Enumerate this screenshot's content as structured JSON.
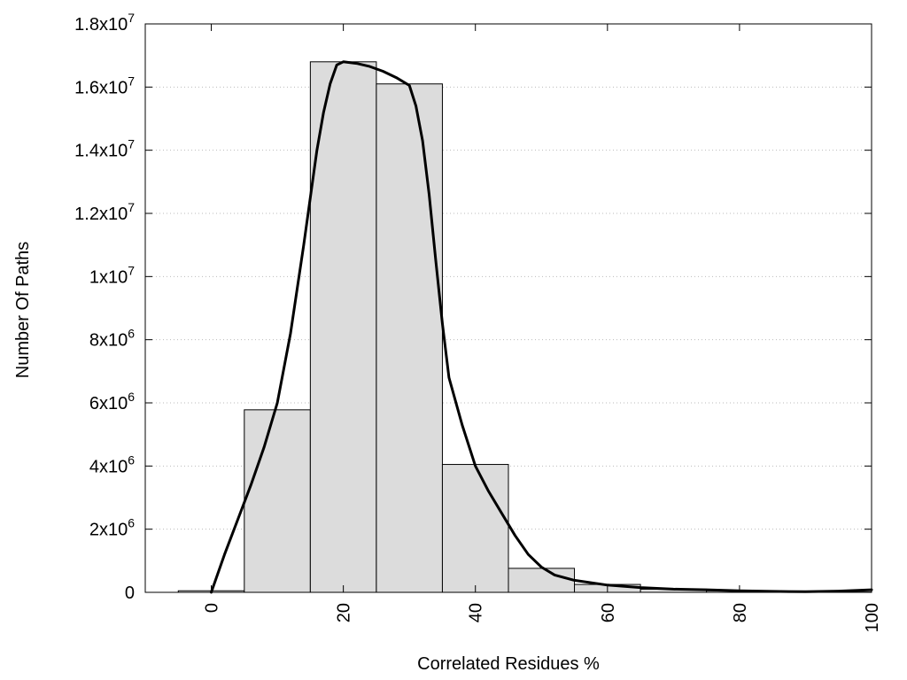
{
  "chart_data": {
    "type": "bar",
    "title": "",
    "xlabel": "Correlated Residues %",
    "ylabel": "Number Of Paths",
    "xlim": [
      -10,
      100
    ],
    "ylim": [
      0,
      18000000
    ],
    "grid": "horizontal-dotted",
    "x_ticks": [
      {
        "value": 0,
        "label": "0"
      },
      {
        "value": 20,
        "label": "20"
      },
      {
        "value": 40,
        "label": "40"
      },
      {
        "value": 60,
        "label": "60"
      },
      {
        "value": 80,
        "label": "80"
      },
      {
        "value": 100,
        "label": "100"
      }
    ],
    "y_ticks": [
      {
        "value": 0,
        "base": "0",
        "exp": ""
      },
      {
        "value": 2000000,
        "base": "2x10",
        "exp": "6"
      },
      {
        "value": 4000000,
        "base": "4x10",
        "exp": "6"
      },
      {
        "value": 6000000,
        "base": "6x10",
        "exp": "6"
      },
      {
        "value": 8000000,
        "base": "8x10",
        "exp": "6"
      },
      {
        "value": 10000000,
        "base": "1x10",
        "exp": "7"
      },
      {
        "value": 12000000,
        "base": "1.2x10",
        "exp": "7"
      },
      {
        "value": 14000000,
        "base": "1.4x10",
        "exp": "7"
      },
      {
        "value": 16000000,
        "base": "1.6x10",
        "exp": "7"
      },
      {
        "value": 18000000,
        "base": "1.8x10",
        "exp": "7"
      }
    ],
    "bins": [
      {
        "from": -5,
        "to": 5,
        "value": 50000
      },
      {
        "from": 5,
        "to": 15,
        "value": 5780000
      },
      {
        "from": 15,
        "to": 25,
        "value": 16800000
      },
      {
        "from": 25,
        "to": 35,
        "value": 16100000
      },
      {
        "from": 35,
        "to": 45,
        "value": 4050000
      },
      {
        "from": 45,
        "to": 55,
        "value": 760000
      },
      {
        "from": 55,
        "to": 65,
        "value": 250000
      },
      {
        "from": 65,
        "to": 75,
        "value": 100000
      },
      {
        "from": 75,
        "to": 85,
        "value": 50000
      },
      {
        "from": 85,
        "to": 95,
        "value": 20000
      },
      {
        "from": 95,
        "to": 100,
        "value": 10000
      }
    ],
    "curve": {
      "x": [
        0,
        2,
        4,
        6,
        8,
        10,
        12,
        14,
        16,
        17,
        18,
        19,
        20,
        22,
        24,
        26,
        28,
        30,
        31,
        32,
        33,
        34,
        35,
        36,
        38,
        40,
        42,
        44,
        46,
        48,
        50,
        52,
        55,
        60,
        65,
        70,
        75,
        80,
        85,
        90,
        95,
        100
      ],
      "y": [
        0,
        1200000,
        2300000,
        3400000,
        4600000,
        6000000,
        8200000,
        11000000,
        14000000,
        15200000,
        16100000,
        16700000,
        16800000,
        16750000,
        16650000,
        16500000,
        16300000,
        16050000,
        15400000,
        14300000,
        12600000,
        10500000,
        8500000,
        6800000,
        5300000,
        4000000,
        3200000,
        2500000,
        1800000,
        1200000,
        800000,
        550000,
        380000,
        230000,
        150000,
        100000,
        80000,
        50000,
        30000,
        20000,
        40000,
        80000
      ]
    },
    "colors": {
      "bar_fill": "#dcdcdc",
      "bar_stroke": "#000000",
      "curve": "#000000",
      "grid": "#bbbbbb"
    }
  }
}
